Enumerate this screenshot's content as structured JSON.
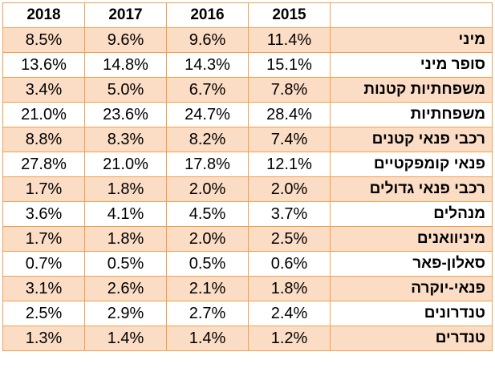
{
  "chart_data": {
    "type": "table",
    "columns": [
      "2018",
      "2017",
      "2016",
      "2015",
      ""
    ],
    "row_band_color": "#fbdcc4",
    "border_color": "#f4a04a",
    "rows": [
      {
        "label": "מיני",
        "values": [
          "8.5%",
          "9.6%",
          "9.6%",
          "11.4%"
        ]
      },
      {
        "label": "סופר מיני",
        "values": [
          "13.6%",
          "14.8%",
          "14.3%",
          "15.1%"
        ]
      },
      {
        "label": "משפחתיות קטנות",
        "values": [
          "3.4%",
          "5.0%",
          "6.7%",
          "7.8%"
        ]
      },
      {
        "label": "משפחתיות",
        "values": [
          "21.0%",
          "23.6%",
          "24.7%",
          "28.4%"
        ]
      },
      {
        "label": "רכבי פנאי קטנים",
        "values": [
          "8.8%",
          "8.3%",
          "8.2%",
          "7.4%"
        ]
      },
      {
        "label": "פנאי קומפקטיים",
        "values": [
          "27.8%",
          "21.0%",
          "17.8%",
          "12.1%"
        ]
      },
      {
        "label": "רכבי פנאי גדולים",
        "values": [
          "1.7%",
          "1.8%",
          "2.0%",
          "2.0%"
        ]
      },
      {
        "label": "מנהלים",
        "values": [
          "3.6%",
          "4.1%",
          "4.5%",
          "3.7%"
        ]
      },
      {
        "label": "מיניוואנים",
        "values": [
          "1.7%",
          "1.8%",
          "2.0%",
          "2.5%"
        ]
      },
      {
        "label": "סאלון-פאר",
        "values": [
          "0.7%",
          "0.5%",
          "0.5%",
          "0.6%"
        ]
      },
      {
        "label": "פנאי-יוקרה",
        "values": [
          "3.1%",
          "2.6%",
          "2.1%",
          "1.8%"
        ]
      },
      {
        "label": "טנדרונים",
        "values": [
          "2.5%",
          "2.9%",
          "2.7%",
          "2.4%"
        ]
      },
      {
        "label": "טנדרים",
        "values": [
          "1.3%",
          "1.4%",
          "1.4%",
          "1.2%"
        ]
      }
    ]
  }
}
